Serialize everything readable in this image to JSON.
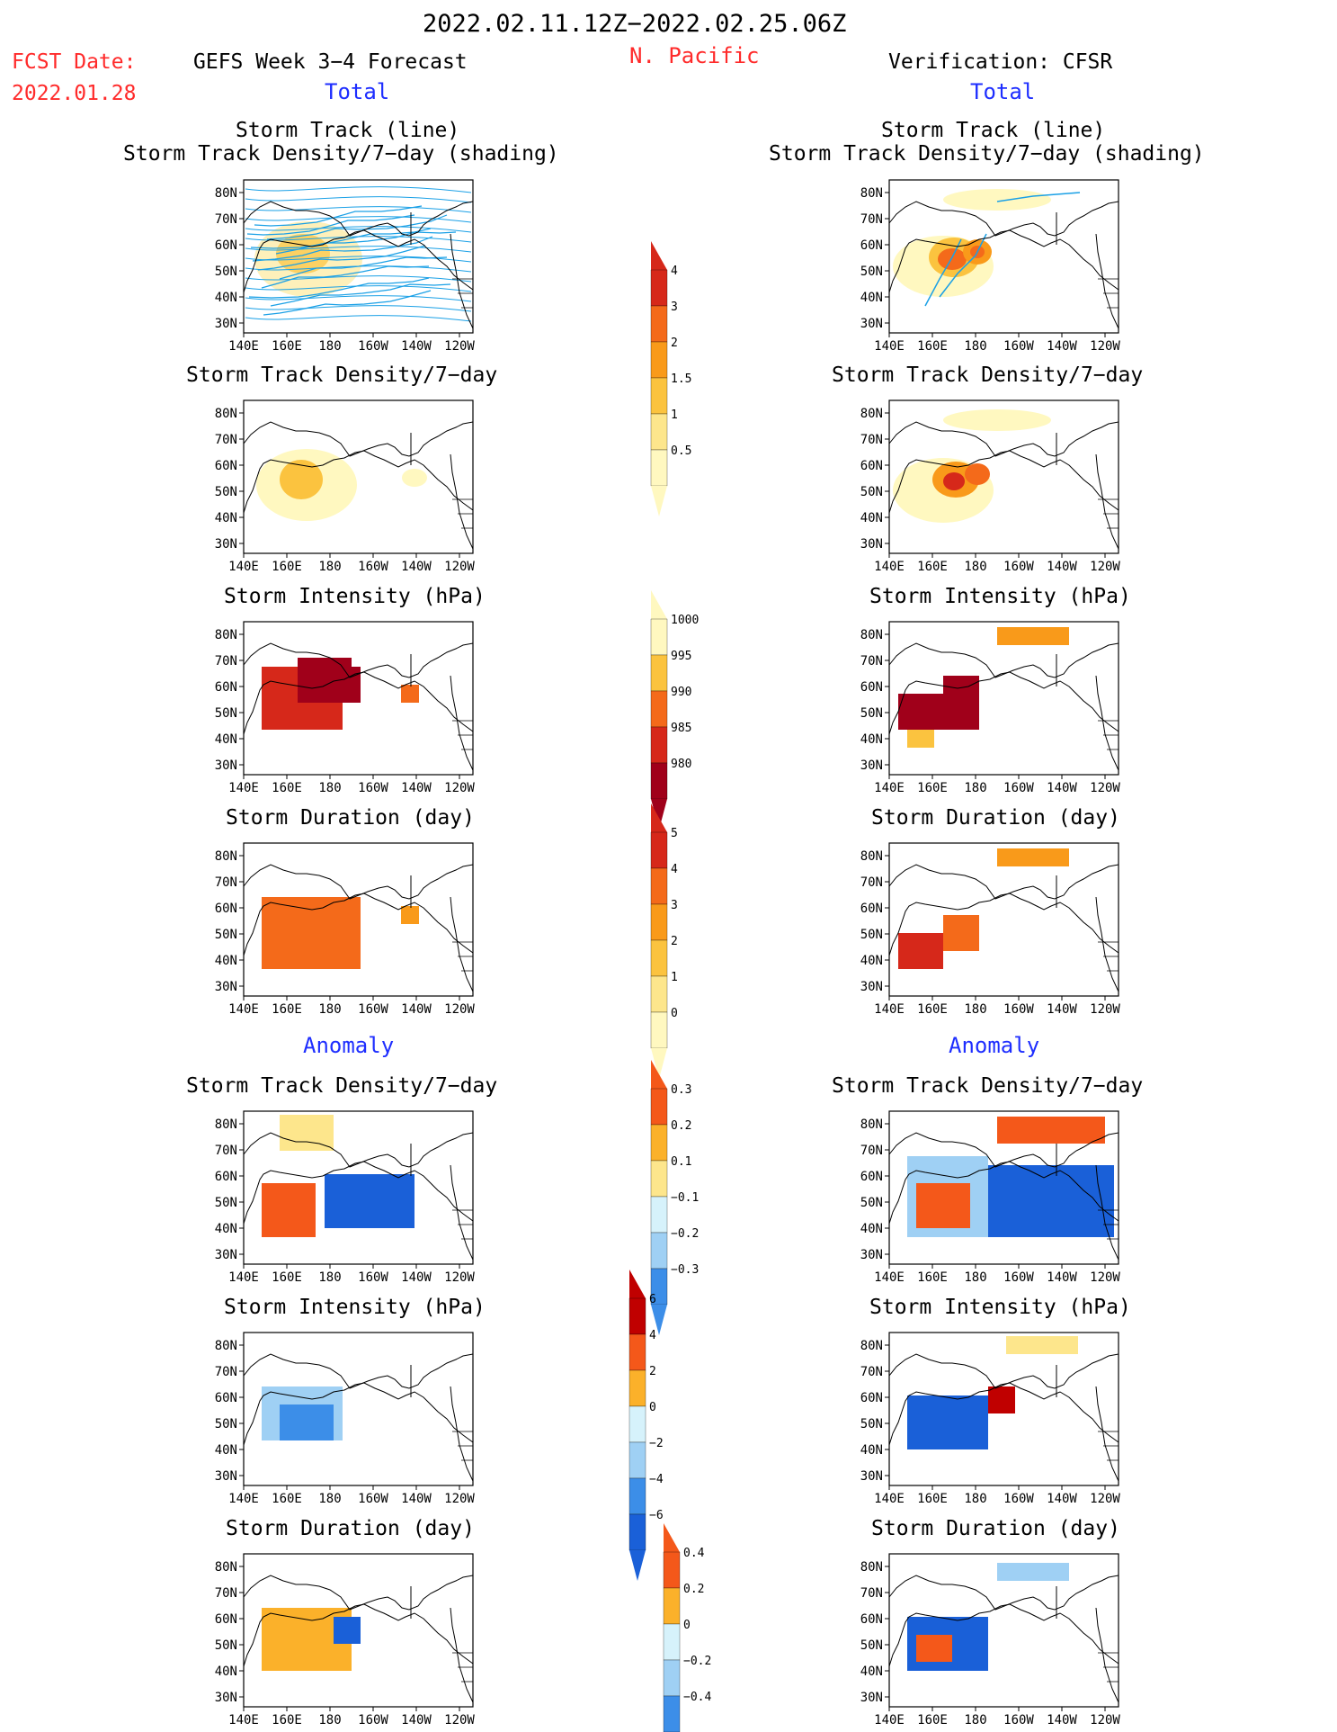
{
  "header": {
    "period": "2022.02.11.12Z−2022.02.25.06Z",
    "region": "N. Pacific",
    "fcst_label": "FCST Date:",
    "fcst_date": "2022.01.28",
    "left_title": "GEFS Week 3−4 Forecast",
    "right_title": "Verification: CFSR",
    "total_label": "Total",
    "anomaly_label": "Anomaly"
  },
  "panel_titles": {
    "track_line": "Storm Track (line)",
    "track_density_shading": "Storm Track Density/7−day (shading)",
    "density": "Storm Track Density/7−day",
    "intensity": "Storm Intensity (hPa)",
    "duration": "Storm Duration (day)"
  },
  "axes": {
    "lon_ticks": [
      "140E",
      "160E",
      "180",
      "160W",
      "140W",
      "120W"
    ],
    "lat_ticks": [
      "80N",
      "70N",
      "60N",
      "50N",
      "40N",
      "30N"
    ]
  },
  "colors": {
    "title_red": "#ff2a2a",
    "label_blue": "#1e2eff",
    "track_line": "#1aa0e6",
    "pos_scale": [
      "#fff8c0",
      "#fde68c",
      "#fbc33f",
      "#f99a1a",
      "#f46a1a",
      "#d6281a",
      "#a0001a"
    ],
    "anom_scale": [
      "#1a60d8",
      "#3c8ee8",
      "#9fd0f4",
      "#d6f2fb",
      "#ffffff",
      "#fde68c",
      "#fbb12a",
      "#f4581a",
      "#c00000"
    ]
  },
  "colorbars": {
    "density_total": [
      "4",
      "3",
      "2",
      "1.5",
      "1",
      "0.5"
    ],
    "intensity_total": [
      "1000",
      "995",
      "990",
      "985",
      "980"
    ],
    "duration_total": [
      "5",
      "4",
      "3",
      "2",
      "1",
      "0"
    ],
    "density_anom": [
      "0.3",
      "0.2",
      "0.1",
      "−0.1",
      "−0.2",
      "−0.3"
    ],
    "intensity_anom": [
      "6",
      "4",
      "2",
      "0",
      "−2",
      "−4",
      "−6"
    ],
    "duration_anom": [
      "0.4",
      "0.2",
      "0",
      "−0.2",
      "−0.4"
    ]
  }
}
